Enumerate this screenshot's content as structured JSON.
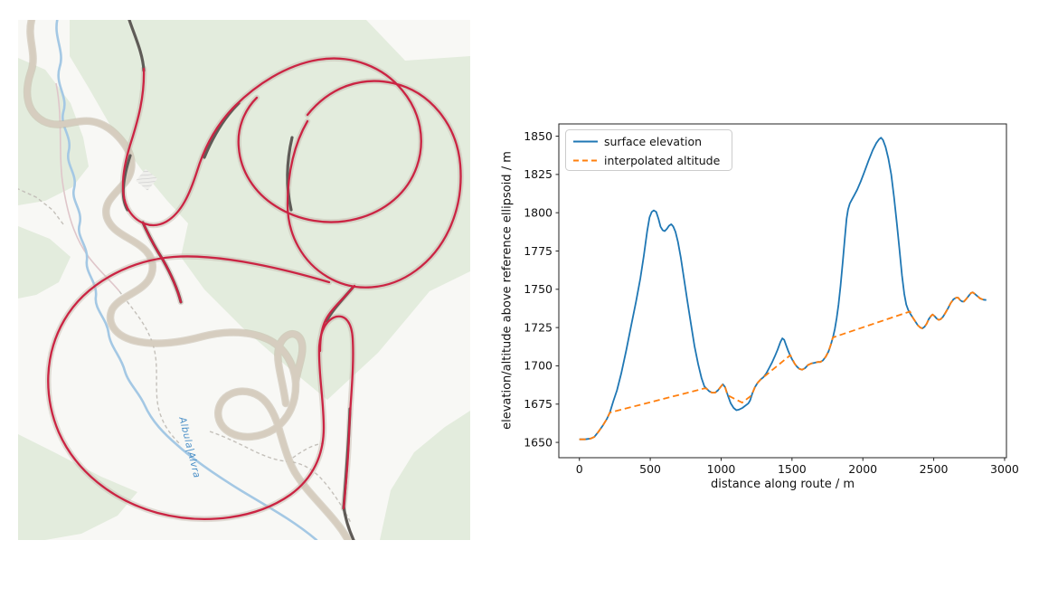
{
  "map": {
    "river_label": "Albula|Alvra",
    "colors": {
      "background": "#f8f8f5",
      "forest": "#e3ecdd",
      "road_fill": "#d6cdbf",
      "road_casing": "#c3b8a6",
      "track_halo": "#c7bcb1",
      "dark_road": "#5f5b57",
      "gps_track": "#cb2443",
      "river": "#a4c8e4",
      "river_label_color": "#4a8fc7",
      "dashed_path": "#c4c0ba",
      "minor_road": "#dfc6ca",
      "building_hatch": "#c9c9c9"
    }
  },
  "chart_data": {
    "type": "line",
    "title": "",
    "xlabel": "distance along route / m",
    "ylabel": "elevation/altitude above reference ellipsoid / m",
    "x_ticks": [
      0,
      500,
      1000,
      1500,
      2000,
      2500,
      3000
    ],
    "y_ticks": [
      1650,
      1675,
      1700,
      1725,
      1750,
      1775,
      1800,
      1825,
      1850
    ],
    "xlim": [
      -145,
      3013
    ],
    "ylim": [
      1640,
      1858
    ],
    "grid": false,
    "legend_position": "upper left",
    "axes_color": "#222222",
    "series": [
      {
        "name": "surface elevation",
        "color": "#1f77b4",
        "linestyle": "solid",
        "points": [
          [
            0,
            1652
          ],
          [
            40,
            1652
          ],
          [
            80,
            1652.5
          ],
          [
            105,
            1653.5
          ],
          [
            135,
            1657
          ],
          [
            165,
            1661
          ],
          [
            195,
            1665.5
          ],
          [
            215,
            1669.5
          ],
          [
            240,
            1677
          ],
          [
            265,
            1684
          ],
          [
            295,
            1695
          ],
          [
            330,
            1710
          ],
          [
            365,
            1726
          ],
          [
            400,
            1742
          ],
          [
            430,
            1757
          ],
          [
            455,
            1772
          ],
          [
            478,
            1788
          ],
          [
            495,
            1797
          ],
          [
            510,
            1800.5
          ],
          [
            525,
            1801.5
          ],
          [
            542,
            1800.5
          ],
          [
            558,
            1796
          ],
          [
            572,
            1791
          ],
          [
            588,
            1788.5
          ],
          [
            602,
            1788
          ],
          [
            618,
            1789.5
          ],
          [
            632,
            1791.5
          ],
          [
            648,
            1792.5
          ],
          [
            662,
            1791
          ],
          [
            678,
            1787.5
          ],
          [
            695,
            1781
          ],
          [
            715,
            1771
          ],
          [
            738,
            1757
          ],
          [
            762,
            1742
          ],
          [
            788,
            1727
          ],
          [
            812,
            1713
          ],
          [
            838,
            1701
          ],
          [
            862,
            1692
          ],
          [
            882,
            1686.5
          ],
          [
            898,
            1685
          ],
          [
            915,
            1683.5
          ],
          [
            935,
            1682.5
          ],
          [
            958,
            1682.5
          ],
          [
            978,
            1684
          ],
          [
            998,
            1686.5
          ],
          [
            1012,
            1688
          ],
          [
            1028,
            1686
          ],
          [
            1048,
            1680.5
          ],
          [
            1068,
            1675.5
          ],
          [
            1088,
            1672.5
          ],
          [
            1108,
            1671
          ],
          [
            1128,
            1671.5
          ],
          [
            1150,
            1672.5
          ],
          [
            1172,
            1674
          ],
          [
            1192,
            1675.5
          ],
          [
            1205,
            1677.5
          ],
          [
            1220,
            1682
          ],
          [
            1238,
            1686
          ],
          [
            1258,
            1689
          ],
          [
            1278,
            1691
          ],
          [
            1298,
            1692.5
          ],
          [
            1318,
            1695
          ],
          [
            1338,
            1698.5
          ],
          [
            1358,
            1702
          ],
          [
            1378,
            1706
          ],
          [
            1398,
            1710.5
          ],
          [
            1418,
            1715.5
          ],
          [
            1432,
            1718
          ],
          [
            1445,
            1717
          ],
          [
            1458,
            1713.5
          ],
          [
            1472,
            1710
          ],
          [
            1488,
            1706.5
          ],
          [
            1502,
            1704
          ],
          [
            1518,
            1701.5
          ],
          [
            1535,
            1699.5
          ],
          [
            1552,
            1698
          ],
          [
            1572,
            1697.5
          ],
          [
            1592,
            1698.5
          ],
          [
            1612,
            1700.5
          ],
          [
            1635,
            1701.5
          ],
          [
            1658,
            1702
          ],
          [
            1680,
            1702.5
          ],
          [
            1700,
            1702.5
          ],
          [
            1718,
            1703.5
          ],
          [
            1738,
            1706
          ],
          [
            1758,
            1709.5
          ],
          [
            1775,
            1714
          ],
          [
            1790,
            1719
          ],
          [
            1802,
            1724
          ],
          [
            1815,
            1731
          ],
          [
            1828,
            1740
          ],
          [
            1842,
            1752
          ],
          [
            1858,
            1768
          ],
          [
            1872,
            1783
          ],
          [
            1885,
            1796
          ],
          [
            1895,
            1802
          ],
          [
            1908,
            1806
          ],
          [
            1922,
            1808.5
          ],
          [
            1940,
            1811.5
          ],
          [
            1960,
            1815
          ],
          [
            1985,
            1820.5
          ],
          [
            2010,
            1826.5
          ],
          [
            2040,
            1834
          ],
          [
            2070,
            1841
          ],
          [
            2095,
            1845.5
          ],
          [
            2115,
            1848
          ],
          [
            2128,
            1849
          ],
          [
            2142,
            1847.5
          ],
          [
            2160,
            1843
          ],
          [
            2180,
            1835.5
          ],
          [
            2200,
            1825
          ],
          [
            2220,
            1810
          ],
          [
            2240,
            1793
          ],
          [
            2258,
            1776
          ],
          [
            2276,
            1759
          ],
          [
            2292,
            1747
          ],
          [
            2306,
            1740
          ],
          [
            2320,
            1736.5
          ],
          [
            2335,
            1734
          ],
          [
            2352,
            1731.5
          ],
          [
            2370,
            1729
          ],
          [
            2388,
            1726.5
          ],
          [
            2405,
            1725
          ],
          [
            2420,
            1724.5
          ],
          [
            2435,
            1725.5
          ],
          [
            2450,
            1727.5
          ],
          [
            2465,
            1730.5
          ],
          [
            2480,
            1732.5
          ],
          [
            2492,
            1733.5
          ],
          [
            2505,
            1732.5
          ],
          [
            2520,
            1731
          ],
          [
            2535,
            1730
          ],
          [
            2550,
            1730.5
          ],
          [
            2565,
            1732
          ],
          [
            2582,
            1734.5
          ],
          [
            2600,
            1737.5
          ],
          [
            2620,
            1741
          ],
          [
            2640,
            1743.5
          ],
          [
            2658,
            1744.5
          ],
          [
            2672,
            1744.5
          ],
          [
            2686,
            1743
          ],
          [
            2700,
            1742
          ],
          [
            2714,
            1742
          ],
          [
            2728,
            1743.5
          ],
          [
            2745,
            1745.5
          ],
          [
            2762,
            1747.5
          ],
          [
            2775,
            1748
          ],
          [
            2790,
            1747
          ],
          [
            2808,
            1745.5
          ],
          [
            2828,
            1744
          ],
          [
            2850,
            1743.2
          ],
          [
            2871,
            1743
          ]
        ]
      },
      {
        "name": "interpolated altitude",
        "color": "#ff7f0e",
        "linestyle": "dashed",
        "points": [
          [
            0,
            1652
          ],
          [
            40,
            1652
          ],
          [
            80,
            1652.5
          ],
          [
            105,
            1653.5
          ],
          [
            135,
            1657
          ],
          [
            165,
            1661
          ],
          [
            195,
            1665.5
          ],
          [
            215,
            1669.5
          ],
          [
            885,
            1685.3
          ],
          [
            898,
            1685
          ],
          [
            915,
            1683.5
          ],
          [
            935,
            1682.5
          ],
          [
            958,
            1682.5
          ],
          [
            978,
            1684
          ],
          [
            998,
            1686.5
          ],
          [
            1012,
            1688
          ],
          [
            1028,
            1686
          ],
          [
            1045,
            1680.8
          ],
          [
            1148,
            1676
          ],
          [
            1212,
            1680.5
          ],
          [
            1220,
            1682
          ],
          [
            1238,
            1686
          ],
          [
            1258,
            1689
          ],
          [
            1278,
            1691
          ],
          [
            1298,
            1692.5
          ],
          [
            1488,
            1707
          ],
          [
            1502,
            1704.5
          ],
          [
            1518,
            1701.5
          ],
          [
            1535,
            1699.5
          ],
          [
            1552,
            1698
          ],
          [
            1572,
            1697.5
          ],
          [
            1592,
            1698.5
          ],
          [
            1612,
            1700.5
          ],
          [
            1635,
            1701.5
          ],
          [
            1658,
            1702
          ],
          [
            1680,
            1702.5
          ],
          [
            1700,
            1702.5
          ],
          [
            1718,
            1703.5
          ],
          [
            1738,
            1706
          ],
          [
            1758,
            1709.5
          ],
          [
            1775,
            1714
          ],
          [
            1788,
            1718.5
          ],
          [
            2332,
            1735.5
          ],
          [
            2352,
            1731.5
          ],
          [
            2370,
            1729
          ],
          [
            2388,
            1726.5
          ],
          [
            2405,
            1725
          ],
          [
            2420,
            1724.5
          ],
          [
            2435,
            1725.5
          ],
          [
            2450,
            1727.5
          ],
          [
            2465,
            1730.5
          ],
          [
            2480,
            1732.5
          ],
          [
            2492,
            1733.5
          ],
          [
            2505,
            1732.5
          ],
          [
            2520,
            1731
          ],
          [
            2535,
            1730
          ],
          [
            2550,
            1730.5
          ],
          [
            2565,
            1732
          ],
          [
            2582,
            1734.5
          ],
          [
            2600,
            1737.5
          ],
          [
            2620,
            1741
          ],
          [
            2640,
            1743.5
          ],
          [
            2658,
            1744.5
          ],
          [
            2672,
            1744.5
          ],
          [
            2686,
            1743
          ],
          [
            2700,
            1742
          ],
          [
            2714,
            1742
          ],
          [
            2728,
            1743.5
          ],
          [
            2745,
            1745.5
          ],
          [
            2762,
            1747.5
          ],
          [
            2775,
            1748
          ],
          [
            2790,
            1747
          ],
          [
            2808,
            1745.5
          ],
          [
            2828,
            1744
          ],
          [
            2850,
            1743.2
          ],
          [
            2871,
            1743
          ]
        ]
      }
    ]
  }
}
